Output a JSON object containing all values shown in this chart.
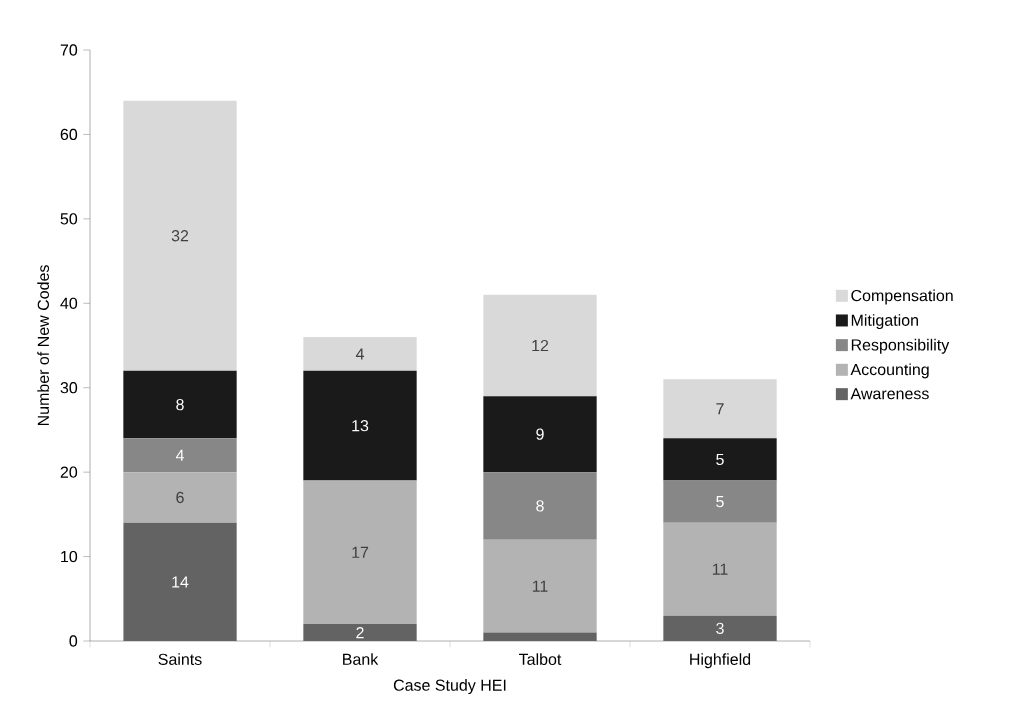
{
  "chart_data": {
    "type": "bar",
    "stacked": true,
    "xlabel": "Case Study HEI",
    "ylabel": "Number of New Codes",
    "categories": [
      "Saints",
      "Bank",
      "Talbot",
      "Highfield"
    ],
    "series": [
      {
        "name": "Awareness",
        "color": "#636363",
        "values": [
          14,
          2,
          1,
          3
        ],
        "value_labels": [
          "14",
          "2",
          null,
          "3"
        ]
      },
      {
        "name": "Accounting",
        "color": "#b3b3b3",
        "values": [
          6,
          17,
          11,
          11
        ],
        "value_labels": [
          "6",
          "17",
          "11",
          "11"
        ]
      },
      {
        "name": "Responsibility",
        "color": "#878787",
        "values": [
          4,
          0,
          8,
          5
        ],
        "value_labels": [
          "4",
          null,
          "8",
          "5"
        ]
      },
      {
        "name": "Mitigation",
        "color": "#1a1a1a",
        "values": [
          8,
          13,
          9,
          5
        ],
        "value_labels": [
          "8",
          "13",
          "9",
          "5"
        ]
      },
      {
        "name": "Compensation",
        "color": "#d9d9d9",
        "values": [
          32,
          4,
          12,
          7
        ],
        "value_labels": [
          "32",
          "4",
          "12",
          "7"
        ]
      }
    ],
    "ylim": [
      0,
      70
    ],
    "yticks": [
      0,
      10,
      20,
      30,
      40,
      50,
      60,
      70
    ],
    "legend": "right",
    "grid": false
  }
}
